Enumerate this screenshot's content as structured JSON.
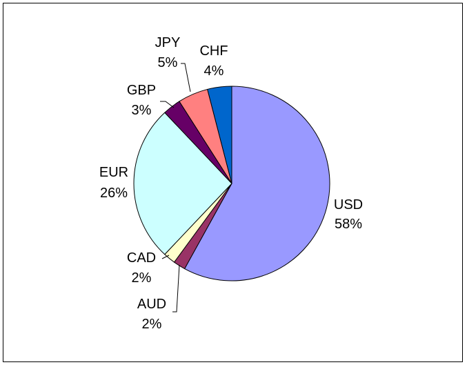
{
  "chart_data": {
    "type": "pie",
    "title": "",
    "slices": [
      {
        "label": "USD",
        "pct_label": "58%",
        "value": 58,
        "color": "#9999ff"
      },
      {
        "label": "AUD",
        "pct_label": "2%",
        "value": 2,
        "color": "#993366"
      },
      {
        "label": "CAD",
        "pct_label": "2%",
        "value": 2,
        "color": "#ffffcc"
      },
      {
        "label": "EUR",
        "pct_label": "26%",
        "value": 26,
        "color": "#ccffff"
      },
      {
        "label": "GBP",
        "pct_label": "3%",
        "value": 3,
        "color": "#660066"
      },
      {
        "label": "JPY",
        "pct_label": "5%",
        "value": 5,
        "color": "#ff8080"
      },
      {
        "label": "CHF",
        "pct_label": "4%",
        "value": 4,
        "color": "#0066cc"
      }
    ],
    "legend": "none"
  }
}
